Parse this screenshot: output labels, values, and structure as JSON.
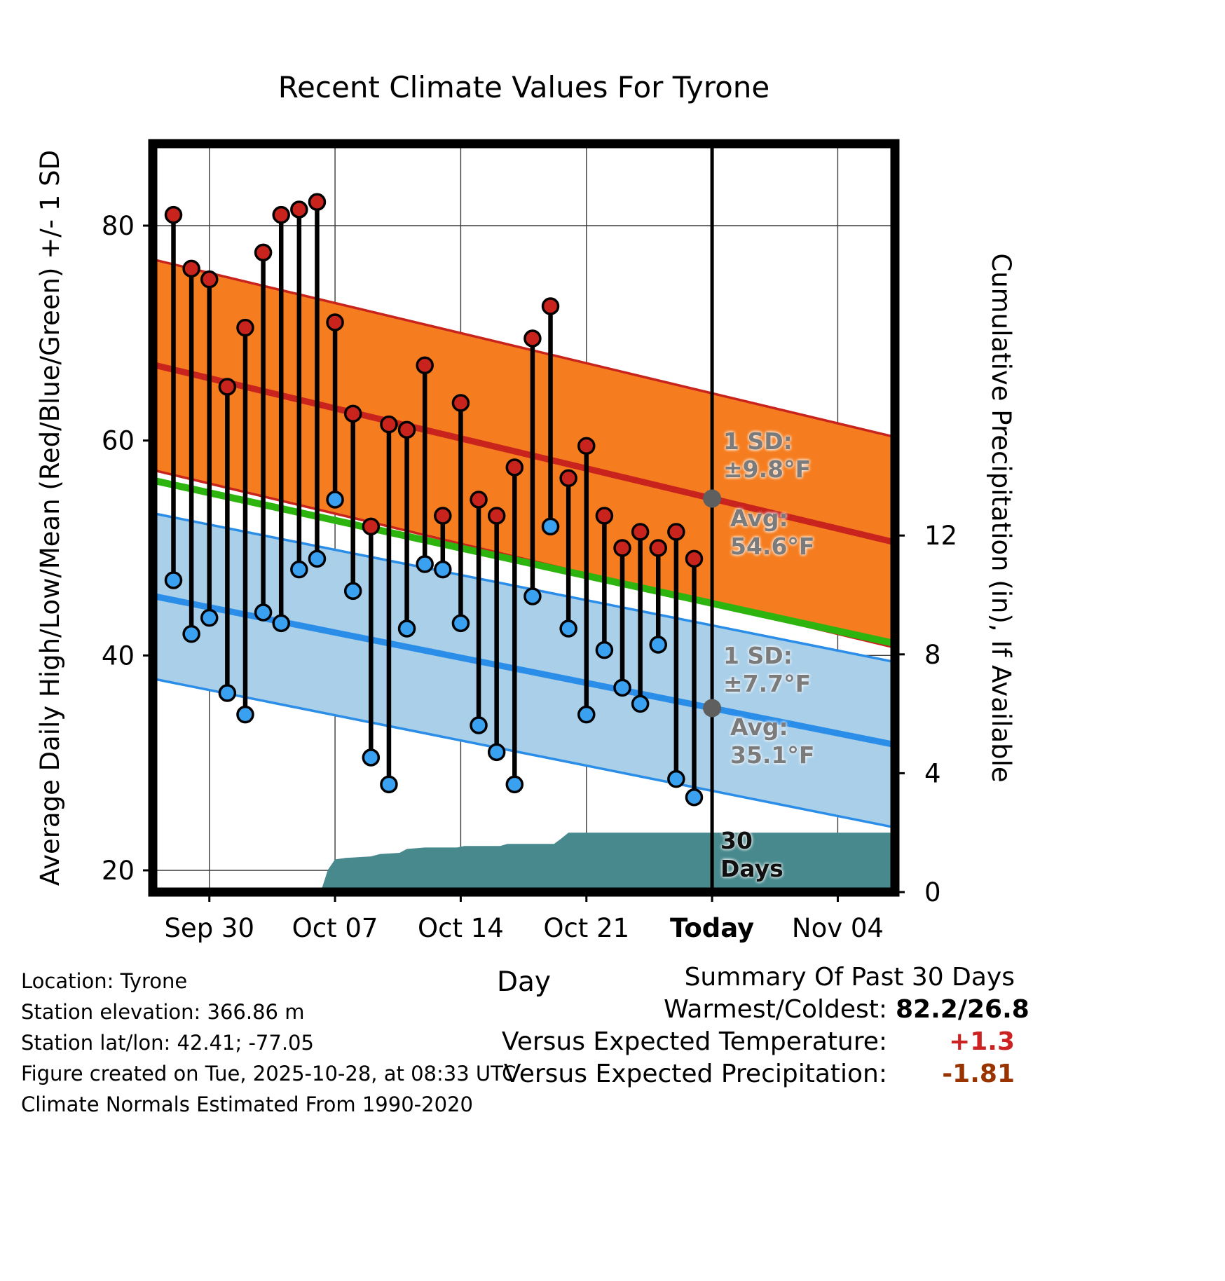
{
  "title": "Recent Climate Values For Tyrone",
  "axes": {
    "left_label": "Average Daily High/Low/Mean (Red/Blue/Green) +/- 1 SD",
    "right_label": "Cumulative Precipitation (in), If Available",
    "x_label": "Day",
    "left_ticks": [
      20,
      40,
      60,
      80
    ],
    "right_ticks": [
      0,
      4,
      8,
      12
    ],
    "x_ticks": [
      {
        "label": "Sep 30",
        "day": 2,
        "bold": false
      },
      {
        "label": "Oct 07",
        "day": 9,
        "bold": false
      },
      {
        "label": "Oct 14",
        "day": 16,
        "bold": false
      },
      {
        "label": "Oct 21",
        "day": 23,
        "bold": false
      },
      {
        "label": "Today",
        "day": 30,
        "bold": true
      },
      {
        "label": "Nov 04",
        "day": 37,
        "bold": false
      }
    ]
  },
  "chart_data": {
    "type": "line",
    "description": "Daily high/low temperature stems with climate-normal bands, mean line, and cumulative precipitation area",
    "today_index": 30,
    "x_range_days": [
      -1.15,
      40.2
    ],
    "ylim_temp_f": [
      18,
      87.6
    ],
    "ylim_precip_in": [
      0,
      25.2
    ],
    "dates": [
      "Sep 28",
      "Sep 29",
      "Sep 30",
      "Oct 01",
      "Oct 02",
      "Oct 03",
      "Oct 04",
      "Oct 05",
      "Oct 06",
      "Oct 07",
      "Oct 08",
      "Oct 09",
      "Oct 10",
      "Oct 11",
      "Oct 12",
      "Oct 13",
      "Oct 14",
      "Oct 15",
      "Oct 16",
      "Oct 17",
      "Oct 18",
      "Oct 19",
      "Oct 20",
      "Oct 21",
      "Oct 22",
      "Oct 23",
      "Oct 24",
      "Oct 25",
      "Oct 26",
      "Oct 27"
    ],
    "series": [
      {
        "name": "daily_high_f",
        "color": "#c8241d",
        "values": [
          81,
          76,
          75,
          65,
          70.5,
          77.5,
          81,
          81.5,
          82.2,
          71,
          62.5,
          52,
          61.5,
          61,
          67,
          53,
          63.5,
          54.5,
          53,
          57.5,
          69.5,
          72.5,
          56.5,
          59.5,
          53,
          50,
          51.5,
          50,
          51.5,
          49
        ]
      },
      {
        "name": "daily_low_f",
        "color": "#3aa0f0",
        "values": [
          47,
          42,
          43.5,
          36.5,
          34.5,
          44,
          43,
          48,
          49,
          54.5,
          46,
          30.5,
          28,
          42.5,
          48.5,
          48,
          43,
          33.5,
          31,
          28,
          45.5,
          52,
          42.5,
          34.5,
          40.5,
          37,
          35.5,
          41,
          28.5,
          26.8
        ]
      }
    ],
    "normals": {
      "high": {
        "avg_at_today": 54.6,
        "sd": 9.8,
        "slope_per_day": -0.4,
        "band_color": "#f57d1f",
        "line_color": "#c8241d"
      },
      "low": {
        "avg_at_today": 35.1,
        "sd": 7.7,
        "slope_per_day": -0.335,
        "band_color": "#a9cfe9",
        "line_color": "#2a8de8"
      },
      "mean_line_color": "#2eb40e"
    },
    "precipitation": {
      "color": "#47898d",
      "cumulative_steps": [
        [
          8.2,
          0
        ],
        [
          8.6,
          0.75
        ],
        [
          9.0,
          1.1
        ],
        [
          9.6,
          1.15
        ],
        [
          11.0,
          1.2
        ],
        [
          11.5,
          1.28
        ],
        [
          12.6,
          1.32
        ],
        [
          13.0,
          1.45
        ],
        [
          14.0,
          1.5
        ],
        [
          15.8,
          1.5
        ],
        [
          16.2,
          1.55
        ],
        [
          18.2,
          1.55
        ],
        [
          18.6,
          1.62
        ],
        [
          21.2,
          1.62
        ],
        [
          21.6,
          1.8
        ],
        [
          22.0,
          2.0
        ],
        [
          40.2,
          2.0
        ]
      ]
    }
  },
  "annotations": {
    "high_sd": "1 SD:\n±9.8°F",
    "high_avg": "Avg:\n54.6°F",
    "low_sd": "1 SD:\n±7.7°F",
    "low_avg": "Avg:\n35.1°F",
    "period": "30\nDays",
    "gray_dot_color": "#5f5f5f"
  },
  "footer_left": [
    "Location: Tyrone",
    "Station elevation: 366.86 m",
    "Station lat/lon: 42.41; -77.05",
    "Figure created on Tue, 2025-10-28, at 08:33 UTC",
    "Climate Normals Estimated From 1990-2020"
  ],
  "summary": {
    "heading": "Summary Of Past 30 Days",
    "rows": [
      {
        "label": "Warmest/Coldest:",
        "value": "82.2/26.8",
        "value_color": "#000000"
      },
      {
        "label": "Versus Expected Temperature:",
        "value": "+1.3",
        "value_color": "#cc2222"
      },
      {
        "label": "Versus Expected Precipitation:",
        "value": "-1.81",
        "value_color": "#993300"
      }
    ]
  }
}
